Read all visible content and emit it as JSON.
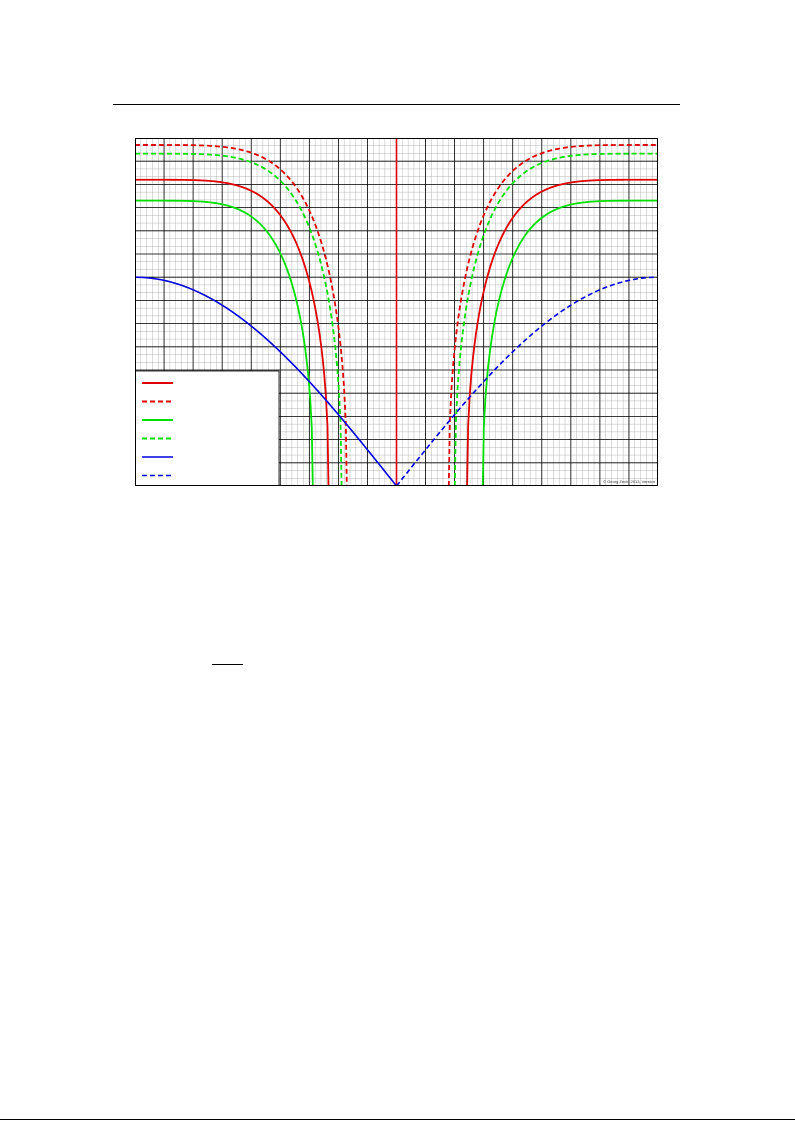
{
  "chart_data": {
    "type": "line",
    "title": "",
    "xlabel": "",
    "ylabel": "",
    "grid": true,
    "legend_placement": "bottom-left",
    "copyright": "© Georg Zech, 2013, Version",
    "series": [
      {
        "color": "#e00000",
        "style": "solid",
        "role": "family-a-solid",
        "y_top": 0.88,
        "asym_l": 0.37,
        "asym_r": 0.635,
        "edge": 0.5
      },
      {
        "color": "#e00000",
        "style": "dashed",
        "role": "family-a-dashed",
        "y_top": 0.98,
        "asym_l": 0.405,
        "asym_r": 0.6,
        "edge": 0.5
      },
      {
        "color": "#00e000",
        "style": "solid",
        "role": "family-b-solid",
        "y_top": 0.82,
        "asym_l": 0.34,
        "asym_r": 0.665,
        "edge": 0.5
      },
      {
        "color": "#00e000",
        "style": "dashed",
        "role": "family-b-dashed",
        "y_top": 0.955,
        "asym_l": 0.395,
        "asym_r": 0.6115,
        "edge": 0.5
      },
      {
        "color": "#0000e0",
        "style": "solid",
        "role": "family-c-solid",
        "y_top": 0.6,
        "x_min": 0.0,
        "x_max": 0.5
      },
      {
        "color": "#0000e0",
        "style": "dashed",
        "role": "family-c-dashed",
        "y_top": 0.6,
        "x_min": 0.5,
        "x_max": 1.0
      }
    ],
    "center_line": {
      "color": "#e00000",
      "x": 0.5
    }
  }
}
